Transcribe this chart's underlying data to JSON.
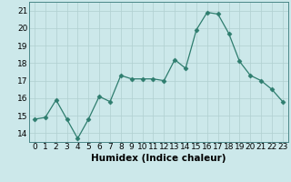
{
  "x": [
    0,
    1,
    2,
    3,
    4,
    5,
    6,
    7,
    8,
    9,
    10,
    11,
    12,
    13,
    14,
    15,
    16,
    17,
    18,
    19,
    20,
    21,
    22,
    23
  ],
  "y": [
    14.8,
    14.9,
    15.9,
    14.8,
    13.7,
    14.8,
    16.1,
    15.8,
    17.3,
    17.1,
    17.1,
    17.1,
    17.0,
    18.2,
    17.7,
    19.9,
    20.9,
    20.8,
    19.7,
    18.1,
    17.3,
    17.0,
    16.5,
    15.8
  ],
  "line_color": "#2e7d6e",
  "marker": "D",
  "marker_size": 2.5,
  "bg_color": "#cce8ea",
  "grid_color": "#b0cfd0",
  "xlabel": "Humidex (Indice chaleur)",
  "ylim": [
    13.5,
    21.5
  ],
  "yticks": [
    14,
    15,
    16,
    17,
    18,
    19,
    20,
    21
  ],
  "xticks": [
    0,
    1,
    2,
    3,
    4,
    5,
    6,
    7,
    8,
    9,
    10,
    11,
    12,
    13,
    14,
    15,
    16,
    17,
    18,
    19,
    20,
    21,
    22,
    23
  ],
  "xlabel_fontsize": 7.5,
  "tick_fontsize": 6.5
}
